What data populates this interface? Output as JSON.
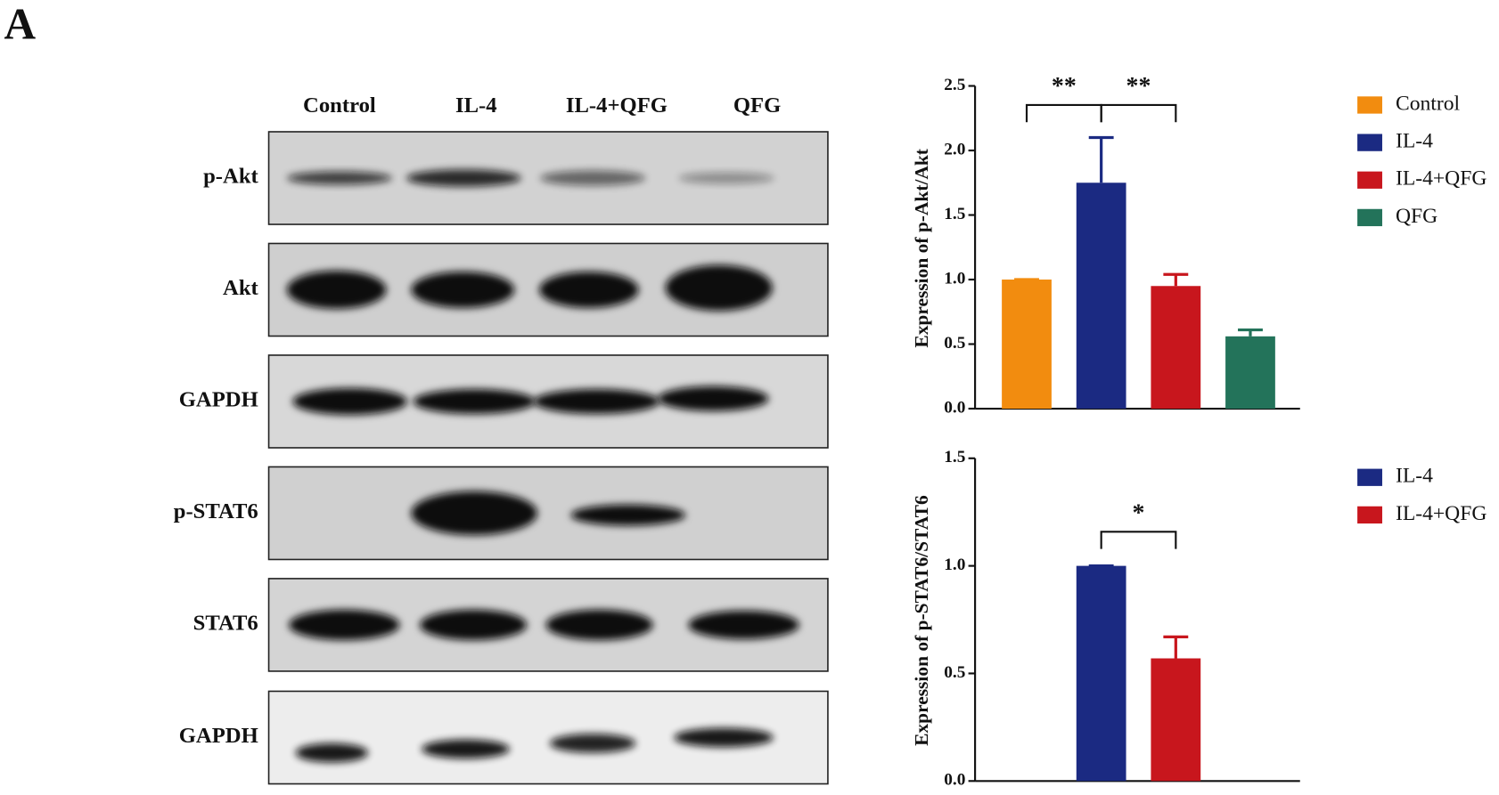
{
  "panel_label": "A",
  "blot": {
    "lanes": [
      "Control",
      "IL-4",
      "IL-4+QFG",
      "QFG"
    ],
    "rows": [
      "p-Akt",
      "Akt",
      "GAPDH",
      "p-STAT6",
      "STAT6",
      "GAPDH"
    ]
  },
  "chart_data": [
    {
      "type": "bar",
      "y_label": "Expression of p-Akt/Akt",
      "categories": [
        "Control",
        "IL-4",
        "IL-4+QFG",
        "QFG"
      ],
      "values": [
        1.0,
        1.75,
        0.95,
        0.56
      ],
      "errors": [
        0,
        0.35,
        0.09,
        0.05
      ],
      "colors": [
        "#f28c0f",
        "#1b2a82",
        "#c8161d",
        "#23735a"
      ],
      "ylim": [
        0,
        2.5
      ],
      "yticks": [
        {
          "value": 0,
          "label": "0.0"
        },
        0.5,
        {
          "value": 1,
          "label": "1.0"
        },
        1.5,
        {
          "value": 2,
          "label": "2.0"
        },
        2.5
      ],
      "legend": "right",
      "comparisons": [
        {
          "label": "**",
          "between": [
            "Control",
            "IL-4"
          ]
        },
        {
          "label": "**",
          "between": [
            "IL-4",
            "IL-4+QFG"
          ]
        }
      ]
    },
    {
      "type": "bar",
      "y_label": "Expression of p-STAT6/STAT6",
      "categories": [
        "IL-4",
        "IL-4+QFG"
      ],
      "values": [
        1.0,
        0.57
      ],
      "errors": [
        0,
        0.1
      ],
      "colors": [
        "#1b2a82",
        "#c8161d"
      ],
      "ylim": [
        0,
        1.5
      ],
      "yticks": [
        {
          "value": 0,
          "label": "0.0"
        },
        0.5,
        {
          "value": 1,
          "label": "1.0"
        },
        1.5
      ],
      "legend": "right",
      "comparisons": [
        {
          "label": "*",
          "between": [
            "IL-4",
            "IL-4+QFG"
          ]
        }
      ]
    }
  ]
}
